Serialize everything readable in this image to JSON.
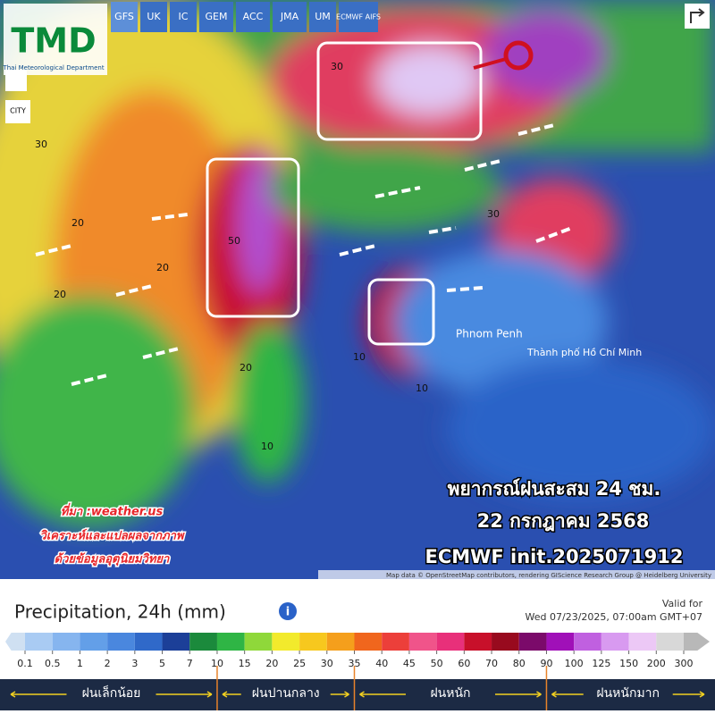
{
  "header": {
    "logo": "TMD",
    "logo_sub": "Thai Meteorological Department",
    "models": [
      "GFS",
      "UK",
      "IC",
      "GEM",
      "ACC",
      "JMA",
      "UM",
      "ECMWF AIFS"
    ],
    "city_button": "CITY"
  },
  "map": {
    "overlay_title": [
      "พยากรณ์ฝนสะสม 24 ชม.",
      "22 กรกฎาคม 2568",
      "ECMWF init.2025071912"
    ],
    "credits": [
      "ที่มา :weather.us",
      "วิเคราะห์และแปลผลจากภาพ",
      "ด้วยข้อมูลอุตุนิยมวิทยา"
    ],
    "places": [
      "Phnom Penh",
      "Thành phố Hồ Chí Minh"
    ],
    "attribution": "Map data © OpenStreetMap contributors, rendering GIScience Research Group @ Heidelberg University",
    "contour_labels": [
      "30",
      "20",
      "50",
      "30",
      "20",
      "10",
      "20",
      "10",
      "30",
      "20",
      "10"
    ]
  },
  "legend": {
    "title": "Precipitation, 24h (mm)",
    "info": "i",
    "valid_label": "Valid for",
    "valid_time": "Wed 07/23/2025, 07:00am GMT+07",
    "stops": [
      0.1,
      0.5,
      1,
      2,
      3,
      5,
      7,
      10,
      15,
      20,
      25,
      30,
      35,
      40,
      45,
      50,
      60,
      70,
      80,
      90,
      100,
      125,
      150,
      200,
      300
    ],
    "colors": [
      "#cfe0f2",
      "#a9cbf3",
      "#86b5ef",
      "#639fe8",
      "#4a87de",
      "#3069c9",
      "#1c3f98",
      "#1b8a3c",
      "#2fb545",
      "#8fd83a",
      "#f2ea2c",
      "#f7c81e",
      "#f59f1c",
      "#f0661d",
      "#ec3f3a",
      "#f0548a",
      "#e8307a",
      "#c8102a",
      "#980a1e",
      "#7b0a6a",
      "#a010b8",
      "#c060e0",
      "#d89af0",
      "#ecc8f6",
      "#d8d8d8",
      "#b8b8b8"
    ],
    "categories": [
      "ฝนเล็กน้อย",
      "ฝนปานกลาง",
      "ฝนหนัก",
      "ฝนหนักมาก"
    ]
  }
}
